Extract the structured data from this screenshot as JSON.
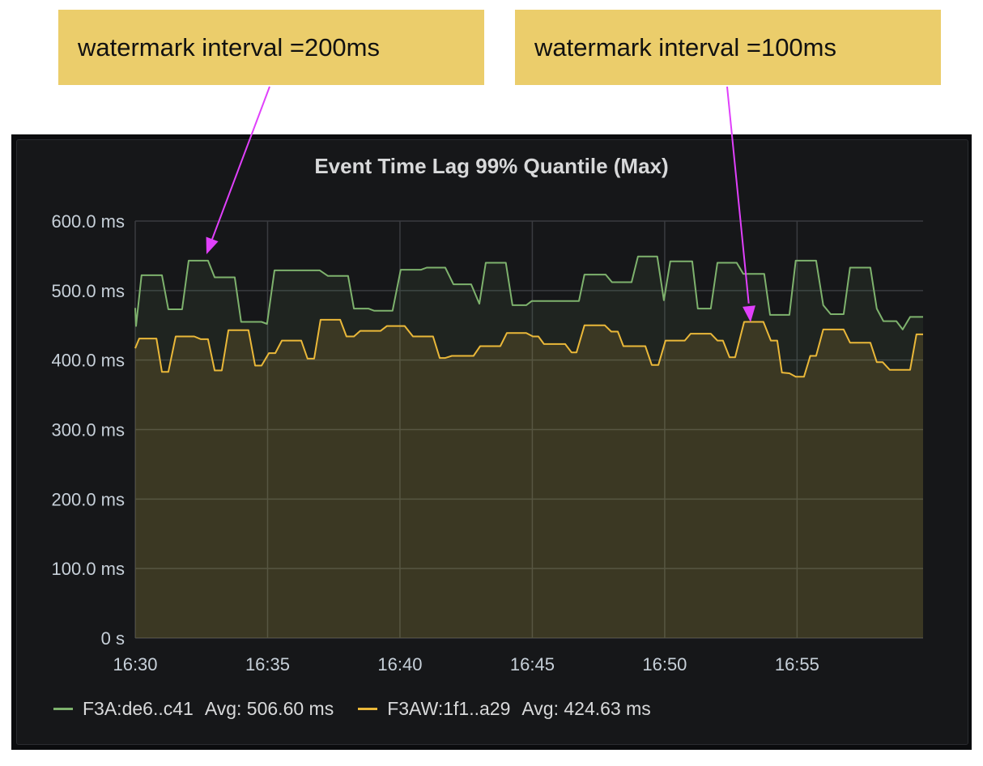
{
  "annotations": [
    {
      "text": "watermark interval =200ms"
    },
    {
      "text": "watermark interval =100ms"
    }
  ],
  "colors": {
    "annotation_bg": "#ebcd6b",
    "arrow": "#e040fb",
    "green": "#7eb26d",
    "yellow": "#eab839"
  },
  "chart_data": {
    "type": "line",
    "title": "Event Time Lag 99% Quantile (Max)",
    "xlabel": "",
    "ylabel": "",
    "x_unit": "minutes after 16:30",
    "xlim": [
      0,
      29.76
    ],
    "ylim": [
      0,
      600
    ],
    "grid": true,
    "legend_position": "bottom-left",
    "y_ticks": [
      {
        "v": 0,
        "label": "0 s"
      },
      {
        "v": 100,
        "label": "100.0 ms"
      },
      {
        "v": 200,
        "label": "200.0 ms"
      },
      {
        "v": 300,
        "label": "300.0 ms"
      },
      {
        "v": 400,
        "label": "400.0 ms"
      },
      {
        "v": 500,
        "label": "500.0 ms"
      },
      {
        "v": 600,
        "label": "600.0 ms"
      }
    ],
    "x_ticks": [
      {
        "v": 0,
        "label": "16:30"
      },
      {
        "v": 5,
        "label": "16:35"
      },
      {
        "v": 10,
        "label": "16:40"
      },
      {
        "v": 15,
        "label": "16:45"
      },
      {
        "v": 20,
        "label": "16:50"
      },
      {
        "v": 25,
        "label": "16:55"
      }
    ],
    "series": [
      {
        "name": "F3A:de6..c41",
        "avg_label": "Avg: 506.60 ms",
        "color": "#7eb26d",
        "points": [
          [
            0,
            475
          ],
          [
            0.03,
            449
          ],
          [
            0.24,
            522
          ],
          [
            1.01,
            522
          ],
          [
            1.25,
            473
          ],
          [
            1.77,
            473
          ],
          [
            2.02,
            543
          ],
          [
            2.75,
            543
          ],
          [
            3.0,
            519
          ],
          [
            3.76,
            519
          ],
          [
            4.0,
            455
          ],
          [
            4.77,
            455
          ],
          [
            4.98,
            452
          ],
          [
            5.26,
            529
          ],
          [
            6.97,
            529
          ],
          [
            7.28,
            521
          ],
          [
            8.04,
            521
          ],
          [
            8.26,
            474
          ],
          [
            8.81,
            474
          ],
          [
            9.02,
            471
          ],
          [
            9.72,
            471
          ],
          [
            10.03,
            530
          ],
          [
            10.8,
            530
          ],
          [
            11.01,
            533
          ],
          [
            11.71,
            533
          ],
          [
            12.02,
            509
          ],
          [
            12.69,
            509
          ],
          [
            13.0,
            481
          ],
          [
            13.24,
            540
          ],
          [
            14.0,
            540
          ],
          [
            14.25,
            479
          ],
          [
            14.77,
            479
          ],
          [
            14.98,
            485
          ],
          [
            16.76,
            485
          ],
          [
            16.97,
            523
          ],
          [
            17.77,
            523
          ],
          [
            18.01,
            512
          ],
          [
            18.75,
            512
          ],
          [
            18.99,
            549
          ],
          [
            19.72,
            549
          ],
          [
            19.97,
            486
          ],
          [
            20.21,
            542
          ],
          [
            21.04,
            542
          ],
          [
            21.25,
            474
          ],
          [
            21.74,
            474
          ],
          [
            21.99,
            540
          ],
          [
            22.72,
            540
          ],
          [
            22.97,
            524
          ],
          [
            23.76,
            524
          ],
          [
            23.98,
            465
          ],
          [
            24.71,
            465
          ],
          [
            24.95,
            543
          ],
          [
            25.72,
            543
          ],
          [
            25.99,
            479
          ],
          [
            26.27,
            466
          ],
          [
            26.76,
            466
          ],
          [
            27.0,
            533
          ],
          [
            27.77,
            533
          ],
          [
            28.01,
            474
          ],
          [
            28.26,
            456
          ],
          [
            28.75,
            456
          ],
          [
            28.99,
            444
          ],
          [
            29.27,
            462
          ],
          [
            29.76,
            462
          ]
        ]
      },
      {
        "name": "F3AW:1f1..a29",
        "avg_label": "Avg: 424.63 ms",
        "color": "#eab839",
        "points": [
          [
            0,
            417
          ],
          [
            0.15,
            431
          ],
          [
            0.8,
            431
          ],
          [
            1.01,
            383
          ],
          [
            1.25,
            383
          ],
          [
            1.53,
            434
          ],
          [
            2.23,
            434
          ],
          [
            2.48,
            430
          ],
          [
            2.75,
            430
          ],
          [
            3.0,
            385
          ],
          [
            3.27,
            385
          ],
          [
            3.52,
            443
          ],
          [
            4.28,
            443
          ],
          [
            4.53,
            392
          ],
          [
            4.77,
            392
          ],
          [
            5.05,
            410
          ],
          [
            5.29,
            410
          ],
          [
            5.54,
            428
          ],
          [
            6.27,
            428
          ],
          [
            6.51,
            402
          ],
          [
            6.76,
            402
          ],
          [
            7.0,
            458
          ],
          [
            7.74,
            458
          ],
          [
            7.98,
            434
          ],
          [
            8.26,
            434
          ],
          [
            8.5,
            442
          ],
          [
            9.27,
            442
          ],
          [
            9.51,
            449
          ],
          [
            10.18,
            449
          ],
          [
            10.49,
            434
          ],
          [
            11.25,
            434
          ],
          [
            11.5,
            403
          ],
          [
            11.71,
            403
          ],
          [
            11.96,
            406
          ],
          [
            12.78,
            406
          ],
          [
            13.03,
            420
          ],
          [
            13.79,
            420
          ],
          [
            14.04,
            439
          ],
          [
            14.77,
            439
          ],
          [
            15.02,
            434
          ],
          [
            15.23,
            434
          ],
          [
            15.44,
            423
          ],
          [
            16.24,
            423
          ],
          [
            16.48,
            411
          ],
          [
            16.67,
            411
          ],
          [
            16.97,
            450
          ],
          [
            17.74,
            450
          ],
          [
            17.98,
            441
          ],
          [
            18.23,
            441
          ],
          [
            18.44,
            420
          ],
          [
            19.27,
            420
          ],
          [
            19.51,
            393
          ],
          [
            19.76,
            393
          ],
          [
            20.03,
            428
          ],
          [
            20.76,
            428
          ],
          [
            20.98,
            438
          ],
          [
            21.74,
            438
          ],
          [
            21.99,
            428
          ],
          [
            22.2,
            428
          ],
          [
            22.45,
            404
          ],
          [
            22.66,
            404
          ],
          [
            23.0,
            455
          ],
          [
            23.73,
            455
          ],
          [
            24.01,
            428
          ],
          [
            24.25,
            428
          ],
          [
            24.43,
            382
          ],
          [
            24.71,
            381
          ],
          [
            24.95,
            376
          ],
          [
            25.26,
            376
          ],
          [
            25.5,
            406
          ],
          [
            25.72,
            406
          ],
          [
            25.99,
            444
          ],
          [
            26.76,
            444
          ],
          [
            27.0,
            425
          ],
          [
            27.77,
            425
          ],
          [
            28.01,
            397
          ],
          [
            28.23,
            397
          ],
          [
            28.5,
            386
          ],
          [
            29.27,
            386
          ],
          [
            29.51,
            437
          ],
          [
            29.76,
            437
          ]
        ]
      }
    ]
  }
}
